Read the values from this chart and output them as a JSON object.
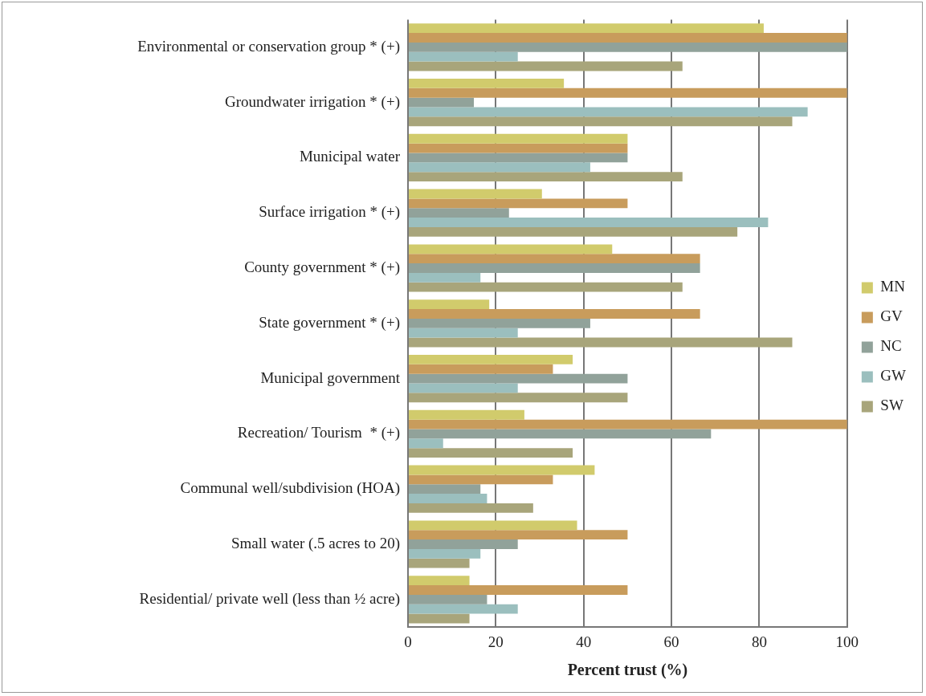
{
  "chart_data": {
    "type": "bar",
    "orientation": "horizontal",
    "xlabel": "Percent trust (%)",
    "categories": [
      "Environmental or conservation group * (+)",
      "Groundwater irrigation * (+)",
      "Municipal water",
      "Surface irrigation * (+)",
      "County government * (+)",
      "State government * (+)",
      "Municipal government",
      "Recreation/ Tourism  * (+)",
      "Communal well/subdivision (HOA)",
      "Small water (.5 acres to 20)",
      "Residential/ private well (less than ½ acre)"
    ],
    "series": [
      {
        "name": "MN",
        "color": "#d1cb6c",
        "values": [
          81,
          35.5,
          50,
          30.5,
          46.5,
          18.5,
          37.5,
          26.5,
          42.5,
          38.5,
          14
        ]
      },
      {
        "name": "GV",
        "color": "#c89c5c",
        "values": [
          100,
          100,
          50,
          50,
          66.5,
          66.5,
          33,
          100,
          33,
          50,
          50
        ]
      },
      {
        "name": "NC",
        "color": "#91a29a",
        "values": [
          100,
          15,
          50,
          23,
          66.5,
          41.5,
          50,
          69,
          16.5,
          25,
          18
        ]
      },
      {
        "name": "GW",
        "color": "#9bbfbe",
        "values": [
          25,
          91,
          41.5,
          82,
          16.5,
          25,
          25,
          8,
          18,
          16.5,
          25
        ]
      },
      {
        "name": "SW",
        "color": "#a8a57b",
        "values": [
          62.5,
          87.5,
          62.5,
          75,
          62.5,
          87.5,
          50,
          37.5,
          28.5,
          14,
          14
        ]
      }
    ],
    "xlim": [
      0,
      100
    ],
    "xticks": [
      0,
      20,
      40,
      60,
      80,
      100
    ],
    "grid": "x",
    "legend": "right"
  }
}
